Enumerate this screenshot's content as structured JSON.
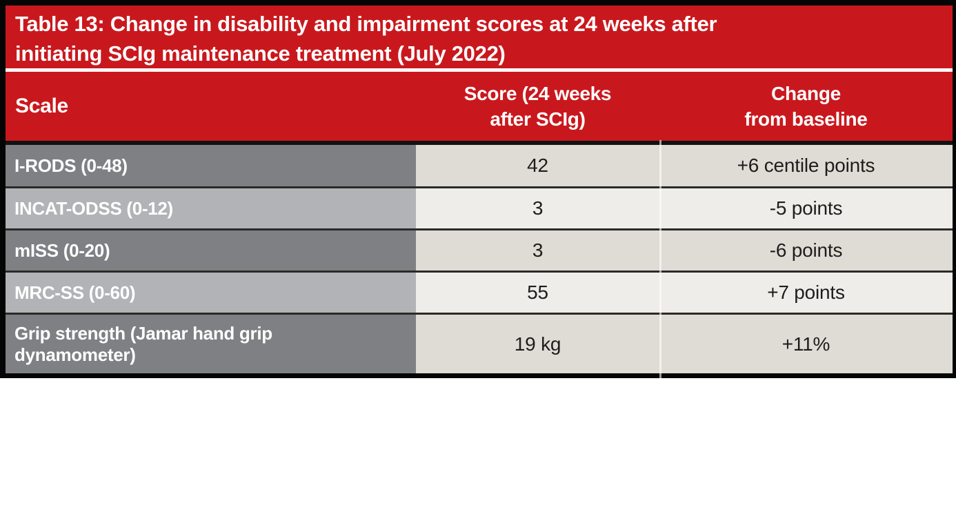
{
  "table": {
    "title_line1": "Table 13: Change in disability and impairment scores at 24 weeks after",
    "title_line2": "initiating SCIg maintenance treatment (July 2022)",
    "columns": {
      "scale": "Scale",
      "score_line1": "Score (24 weeks",
      "score_line2": "after SCIg)",
      "change_line1": "Change",
      "change_line2": "from baseline"
    },
    "rows": [
      {
        "scale": "I-RODS (0-48)",
        "score": "42",
        "change": "+6 centile points"
      },
      {
        "scale": "INCAT-ODSS (0-12)",
        "score": "3",
        "change": "-5 points"
      },
      {
        "scale": "mISS (0-20)",
        "score": "3",
        "change": "-6 points"
      },
      {
        "scale": "MRC-SS (0-60)",
        "score": "55",
        "change": "+7 points"
      },
      {
        "scale": "Grip strength (Jamar hand grip dynamometer)",
        "score": "19 kg",
        "change": "+11%"
      }
    ],
    "colors": {
      "header_red": "#c9181d",
      "row_label_dark_gray": "#7e8083",
      "row_label_light_gray": "#b1b3b6",
      "cell_dark_beige": "#dfdcd6",
      "cell_light_beige": "#eeede9",
      "row_separator": "#2b2a28",
      "outer_border": "#050505",
      "header_text": "#ffffff",
      "cell_text": "#1e1d1c"
    }
  }
}
